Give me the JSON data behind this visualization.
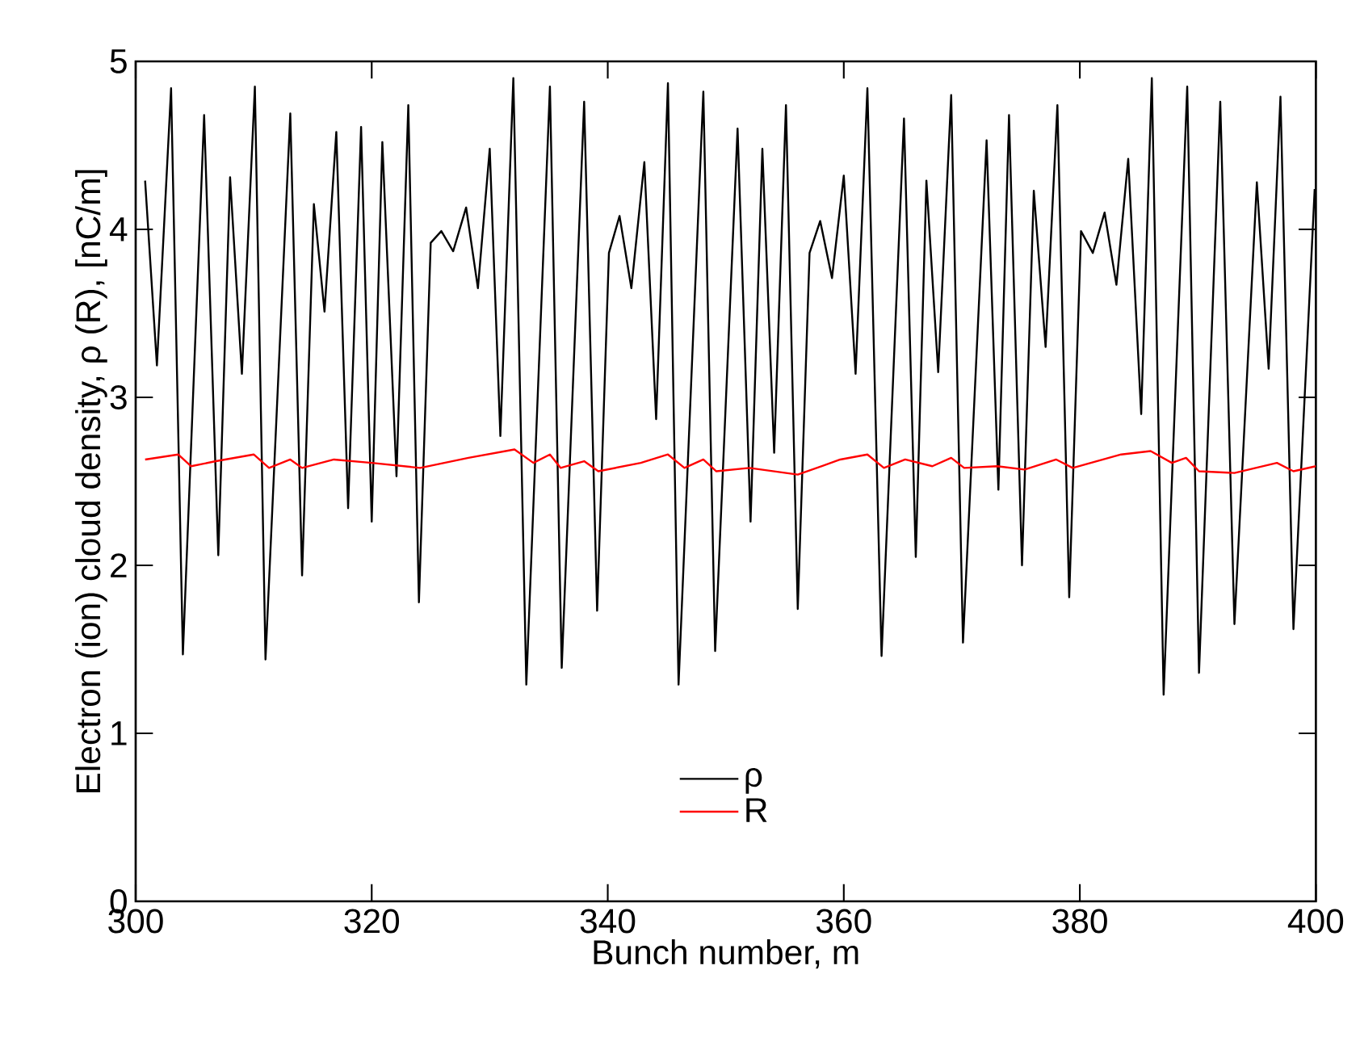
{
  "chart_data": {
    "type": "line",
    "xlabel": "Bunch number, m",
    "ylabel": "Electron (ion) cloud density, ρ (R), [nC/m]",
    "xlim": [
      300,
      400
    ],
    "ylim": [
      0,
      5
    ],
    "xticks": [
      300,
      320,
      340,
      360,
      380,
      400
    ],
    "yticks": [
      0,
      1,
      2,
      3,
      4,
      5
    ],
    "grid": false,
    "legend": "bottom",
    "marker": "none",
    "line_style": "solid",
    "series": [
      {
        "name": "ρ",
        "color": "#000000",
        "x": [
          300.8,
          301.8,
          303.0,
          304.0,
          305.8,
          307.0,
          308.0,
          309.0,
          310.1,
          311.0,
          313.1,
          314.1,
          315.1,
          316.0,
          317.0,
          318.0,
          319.1,
          320.0,
          320.9,
          322.1,
          323.1,
          324.0,
          325.0,
          325.9,
          326.9,
          328.0,
          329.0,
          330.0,
          330.9,
          332.0,
          333.1,
          335.1,
          336.1,
          338.0,
          339.1,
          340.1,
          341.0,
          342.0,
          343.1,
          344.1,
          345.1,
          346.0,
          348.1,
          349.1,
          351.0,
          352.1,
          353.1,
          354.1,
          355.1,
          356.1,
          357.1,
          358.0,
          359.0,
          360.0,
          361.0,
          362.0,
          363.2,
          365.1,
          366.1,
          367.0,
          368.0,
          369.1,
          370.1,
          372.1,
          373.1,
          374.0,
          375.1,
          376.1,
          377.1,
          378.1,
          379.1,
          380.1,
          381.1,
          382.1,
          383.1,
          384.1,
          385.2,
          386.1,
          387.1,
          389.1,
          390.1,
          391.9,
          393.1,
          395.0,
          396.0,
          397.0,
          398.1,
          399.9
        ],
        "values": [
          4.29,
          3.19,
          4.84,
          1.47,
          4.68,
          2.06,
          4.31,
          3.14,
          4.85,
          1.44,
          4.69,
          1.94,
          4.15,
          3.51,
          4.58,
          2.34,
          4.61,
          2.26,
          4.52,
          2.53,
          4.74,
          1.78,
          3.92,
          3.99,
          3.87,
          4.13,
          3.65,
          4.48,
          2.77,
          4.9,
          1.29,
          4.85,
          1.39,
          4.76,
          1.73,
          3.86,
          4.08,
          3.65,
          4.4,
          2.87,
          4.87,
          1.29,
          4.82,
          1.49,
          4.6,
          2.26,
          4.48,
          2.67,
          4.74,
          1.74,
          3.86,
          4.05,
          3.71,
          4.32,
          3.14,
          4.84,
          1.46,
          4.66,
          2.05,
          4.29,
          3.15,
          4.8,
          1.54,
          4.53,
          2.45,
          4.68,
          2.0,
          4.23,
          3.3,
          4.74,
          1.81,
          3.99,
          3.86,
          4.1,
          3.67,
          4.42,
          2.9,
          4.9,
          1.23,
          4.85,
          1.36,
          4.76,
          1.65,
          4.28,
          3.17,
          4.79,
          1.62,
          4.24
        ]
      },
      {
        "name": "R",
        "color": "#ff0000",
        "x": [
          300.8,
          303.6,
          304.7,
          306.8,
          310.0,
          311.3,
          313.1,
          314.1,
          316.8,
          320.0,
          324.1,
          328.2,
          332.1,
          333.7,
          335.1,
          336.0,
          338.0,
          339.2,
          342.8,
          345.1,
          346.5,
          348.1,
          349.2,
          352.0,
          356.1,
          359.7,
          362.0,
          363.4,
          365.2,
          367.5,
          369.1,
          370.2,
          373.0,
          375.3,
          378.0,
          379.4,
          383.5,
          386.0,
          387.8,
          389.0,
          390.1,
          393.1,
          396.7,
          398.1,
          400.0
        ],
        "values": [
          2.63,
          2.66,
          2.59,
          2.62,
          2.66,
          2.58,
          2.63,
          2.58,
          2.63,
          2.61,
          2.58,
          2.64,
          2.69,
          2.61,
          2.66,
          2.58,
          2.62,
          2.56,
          2.61,
          2.66,
          2.58,
          2.63,
          2.56,
          2.58,
          2.54,
          2.63,
          2.66,
          2.58,
          2.63,
          2.59,
          2.64,
          2.58,
          2.59,
          2.57,
          2.63,
          2.58,
          2.66,
          2.68,
          2.61,
          2.64,
          2.56,
          2.55,
          2.61,
          2.56,
          2.59
        ]
      }
    ]
  }
}
